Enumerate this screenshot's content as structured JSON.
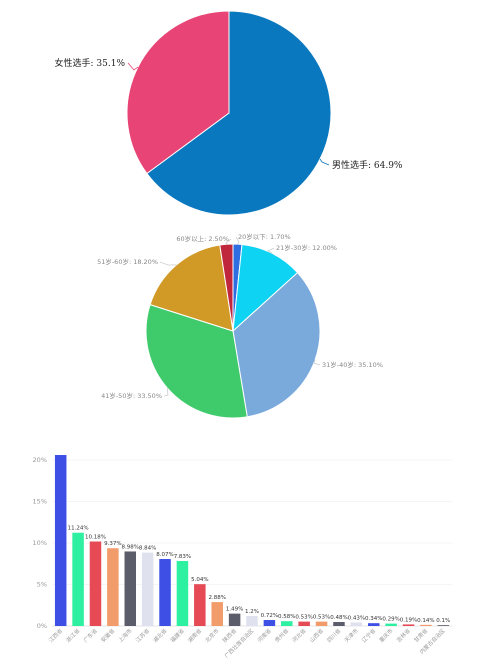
{
  "chart_data": [
    {
      "type": "pie",
      "slices": [
        {
          "label": "男性选手: 64.9%",
          "value": 64.9,
          "color": "#0a78bf"
        },
        {
          "label": "女性选手: 35.1%",
          "value": 35.1,
          "color": "#e84476"
        }
      ]
    },
    {
      "type": "pie",
      "slices": [
        {
          "label": "20岁以下: 1.70%",
          "value": 1.7,
          "color": "#2f6ee0"
        },
        {
          "label": "21岁-30岁: 12.00%",
          "value": 12.0,
          "color": "#0fd3f2"
        },
        {
          "label": "31岁-40岁: 35.10%",
          "value": 35.1,
          "color": "#7aa9dc"
        },
        {
          "label": "41岁-50岁: 33.50%",
          "value": 33.5,
          "color": "#3fca6b"
        },
        {
          "label": "51岁-60岁: 18.20%",
          "value": 18.2,
          "color": "#d19a26"
        },
        {
          "label": "60岁以上: 2.50%",
          "value": 2.5,
          "color": "#c0273c"
        }
      ]
    },
    {
      "type": "bar",
      "ylim": [
        0,
        20
      ],
      "yticks": [
        "0%",
        "5%",
        "10%",
        "15%",
        "20%"
      ],
      "categories": [
        "江西省",
        "浙江省",
        "广东省",
        "安徽省",
        "上海市",
        "江苏省",
        "湖北省",
        "福建省",
        "湖南省",
        "北京市",
        "陕西省",
        "广西壮族自治区",
        "河南省",
        "贵州省",
        "河北省",
        "山西省",
        "四川省",
        "天津市",
        "辽宁省",
        "重庆市",
        "吉林省",
        "甘肃省",
        "内蒙古自治区"
      ],
      "values": [
        20.6,
        11.24,
        10.18,
        9.37,
        8.98,
        8.84,
        8.07,
        7.83,
        5.04,
        2.88,
        1.49,
        1.2,
        0.72,
        0.58,
        0.53,
        0.53,
        0.48,
        0.43,
        0.34,
        0.29,
        0.19,
        0.14,
        0.1
      ],
      "labels": [
        "",
        "11.24%",
        "10.18%",
        "9.37%",
        "8.98%",
        "8.84%",
        "8.07%",
        "7.83%",
        "5.04%",
        "2.88%",
        "1.49%",
        "1.2%",
        "0.72%",
        "0.58%",
        "0.53%",
        "0.53%",
        "0.48%",
        "0.43%",
        "0.34%",
        "0.29%",
        "0.19%",
        "0.14%",
        "0.1%"
      ],
      "colors": [
        "#3e4fe6",
        "#2ef0a1",
        "#e64b55",
        "#f29c6b",
        "#5b5e6a",
        "#dfe2ee",
        "#3e4fe6",
        "#2ef0a1",
        "#e64b55",
        "#f29c6b",
        "#5b5e6a",
        "#dfe2ee",
        "#3e4fe6",
        "#2ef0a1",
        "#e64b55",
        "#f29c6b",
        "#5b5e6a",
        "#dfe2ee",
        "#3e4fe6",
        "#2ef0a1",
        "#e64b55",
        "#f29c6b",
        "#5b5e6a"
      ]
    }
  ]
}
